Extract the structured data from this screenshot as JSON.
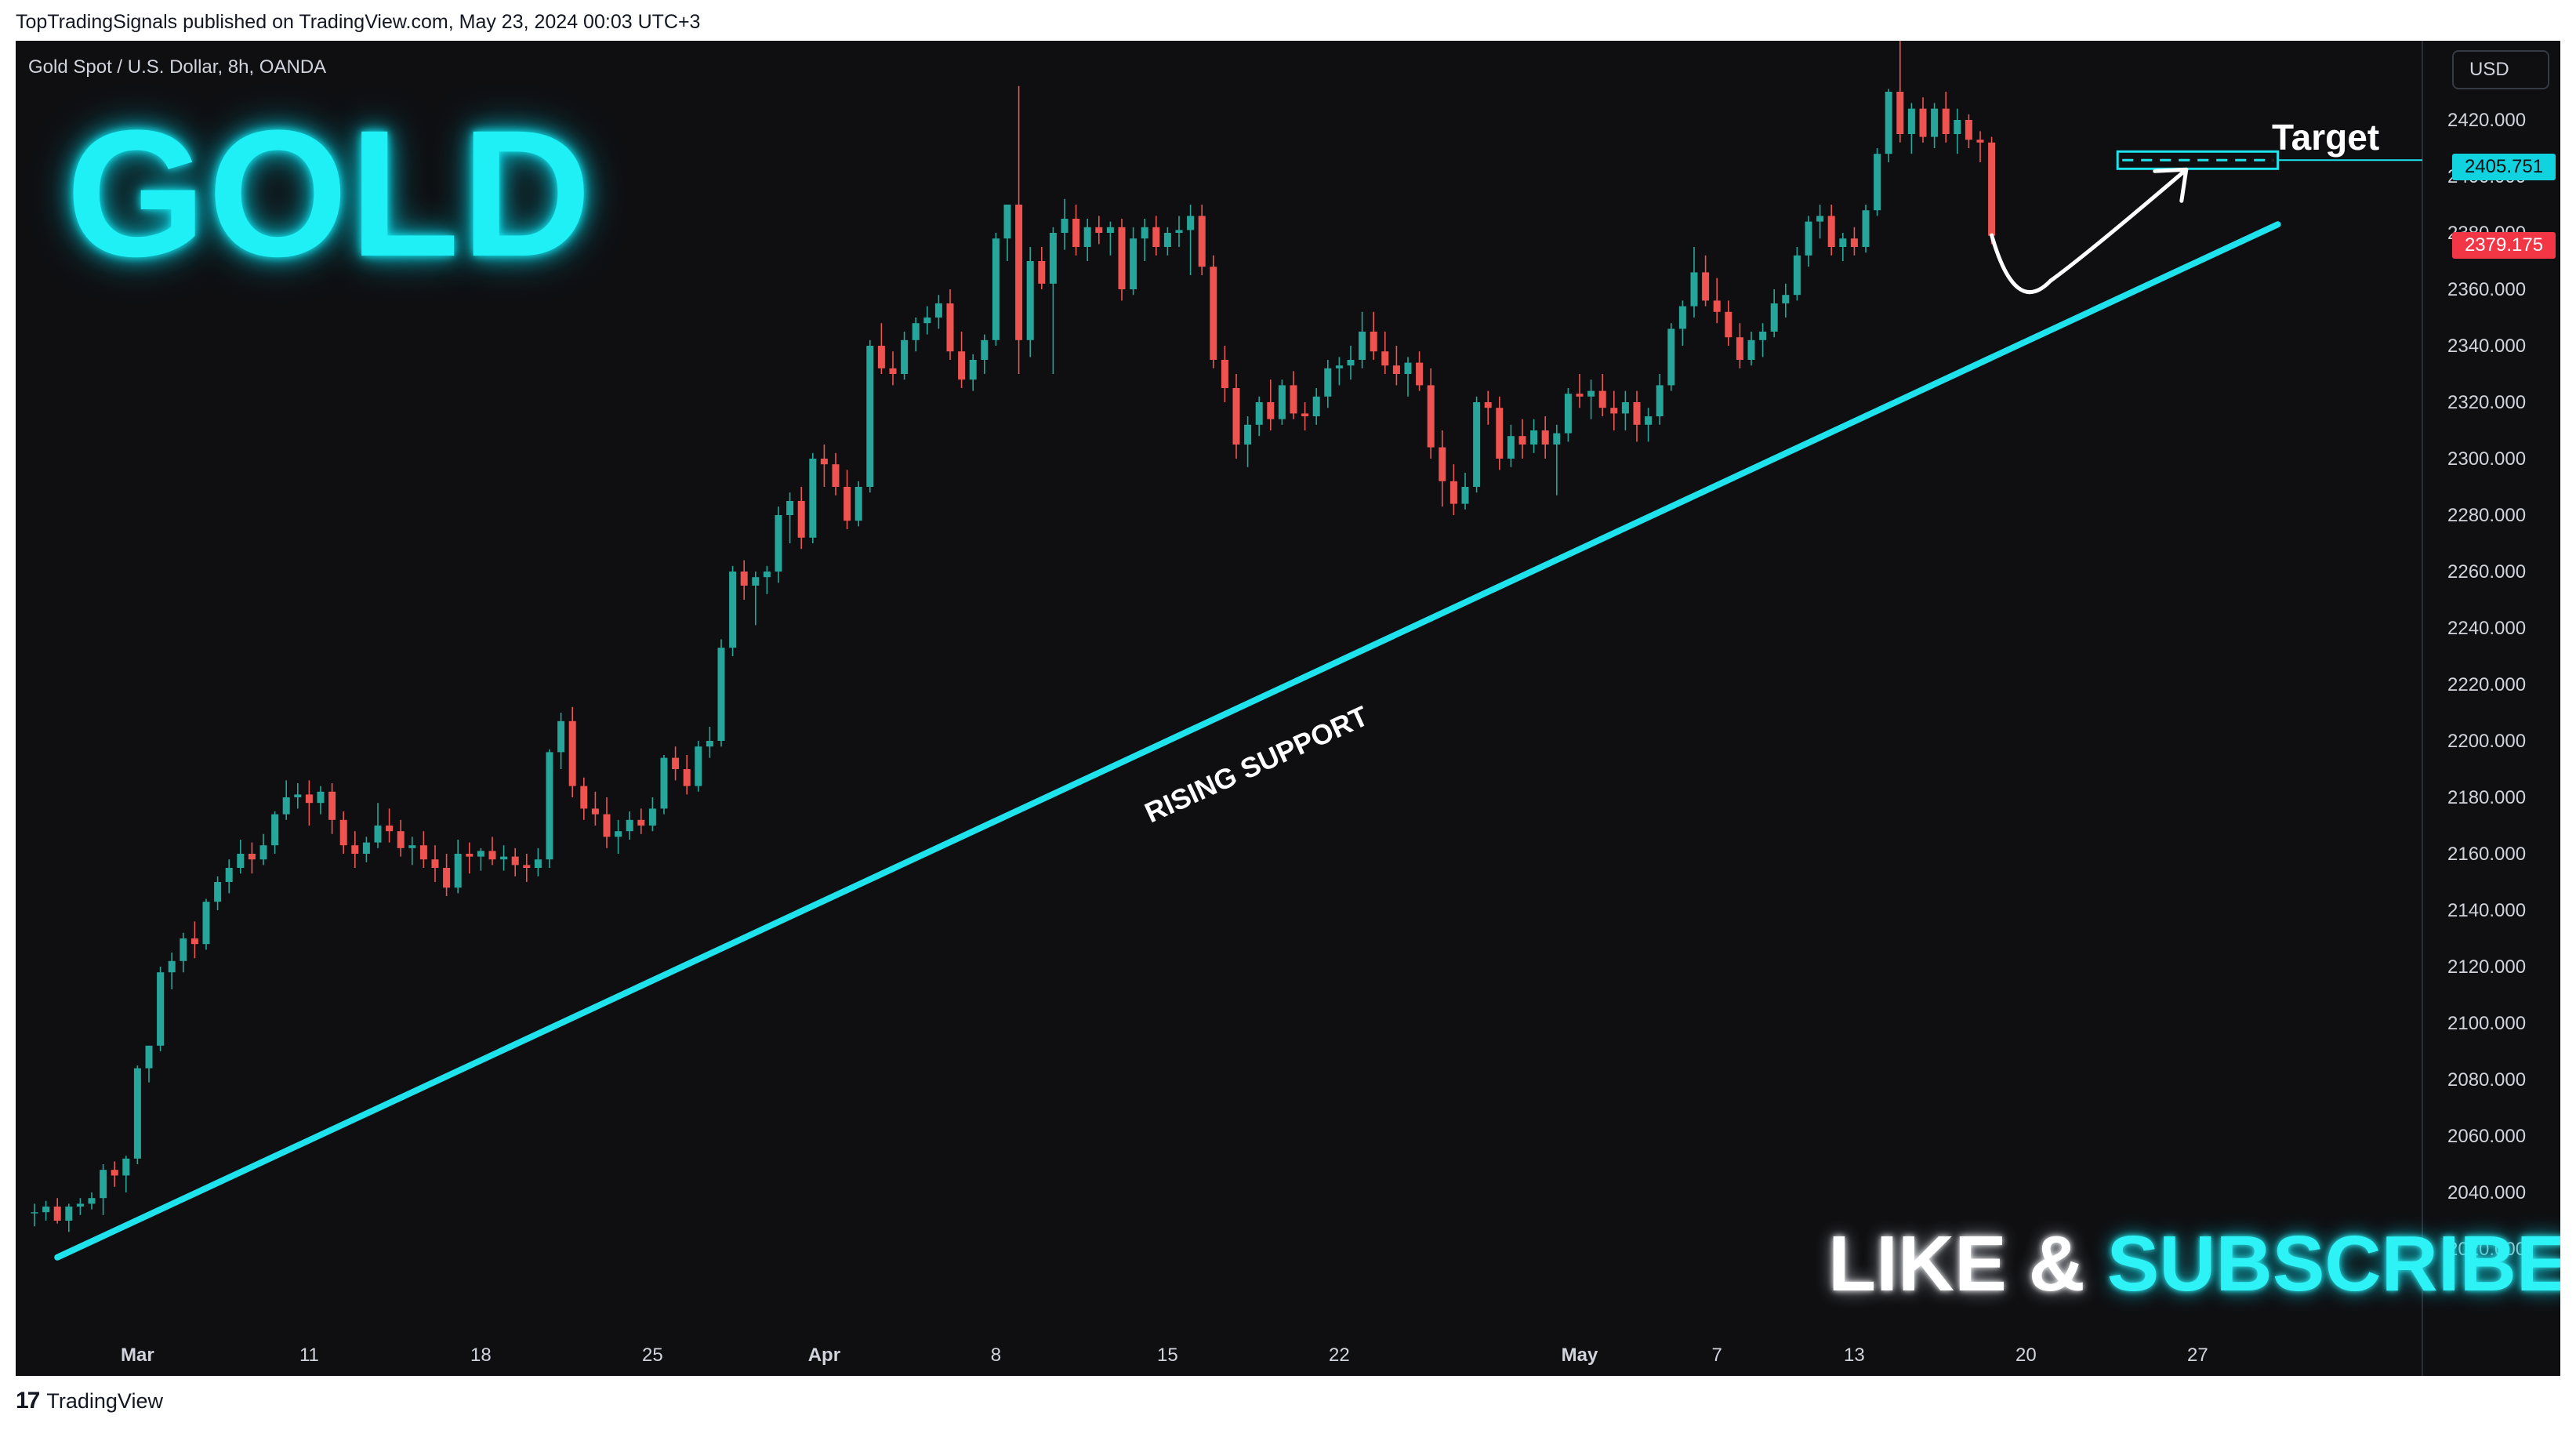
{
  "header": {
    "published_line": "TopTradingSignals published on TradingView.com, May 23, 2024 00:03 UTC+3"
  },
  "chart": {
    "symbol_line": "Gold Spot / U.S. Dollar, 8h, OANDA",
    "currency": "USD",
    "title_overlay": "GOLD",
    "like_text": "LIKE &",
    "subscribe_text": "SUBSCRIBE",
    "target_label": "Target",
    "support_label": "RISING SUPPORT",
    "target_price_tag": "2405.751",
    "last_price_tag": "2379.175"
  },
  "footer": {
    "logo_glyph": "17",
    "brand": "TradingView"
  },
  "colors": {
    "background": "#0f0f12",
    "up": "#26a69a",
    "down": "#ef5350",
    "support_line": "#1fe3ec",
    "target_box": "#1fe3ec",
    "arrow": "#ffffff"
  },
  "chart_data": {
    "type": "candlestick",
    "title": "Gold Spot / U.S. Dollar, 8h, OANDA",
    "ylabel": "USD",
    "ylim": [
      2010,
      2425
    ],
    "y_ticks": [
      2020,
      2040,
      2060,
      2080,
      2100,
      2120,
      2140,
      2160,
      2180,
      2200,
      2220,
      2240,
      2260,
      2280,
      2300,
      2320,
      2340,
      2360,
      2380,
      2400,
      2420
    ],
    "x_ticks": [
      {
        "label": "Mar",
        "bar": 9
      },
      {
        "label": "11",
        "bar": 24
      },
      {
        "label": "18",
        "bar": 39
      },
      {
        "label": "25",
        "bar": 54
      },
      {
        "label": "Apr",
        "bar": 69
      },
      {
        "label": "8",
        "bar": 84
      },
      {
        "label": "15",
        "bar": 99
      },
      {
        "label": "22",
        "bar": 114
      },
      {
        "label": "May",
        "bar": 135
      },
      {
        "label": "7",
        "bar": 147
      },
      {
        "label": "13",
        "bar": 159
      },
      {
        "label": "20",
        "bar": 174
      },
      {
        "label": "27",
        "bar": 189
      }
    ],
    "grid": false,
    "series": [
      {
        "ohlc": [
          [
            2033,
            2036,
            2028,
            2033
          ],
          [
            2033,
            2037,
            2030,
            2035
          ],
          [
            2035,
            2038,
            2029,
            2030
          ],
          [
            2030,
            2036,
            2026,
            2035
          ],
          [
            2035,
            2038,
            2032,
            2036
          ],
          [
            2036,
            2040,
            2034,
            2038
          ],
          [
            2038,
            2050,
            2032,
            2048
          ],
          [
            2048,
            2051,
            2042,
            2046
          ],
          [
            2046,
            2053,
            2040,
            2052
          ],
          [
            2052,
            2085,
            2050,
            2084
          ],
          [
            2084,
            2092,
            2079,
            2092
          ],
          [
            2092,
            2120,
            2090,
            2118
          ],
          [
            2118,
            2125,
            2112,
            2122
          ],
          [
            2122,
            2132,
            2118,
            2130
          ],
          [
            2130,
            2136,
            2123,
            2128
          ],
          [
            2128,
            2144,
            2126,
            2143
          ],
          [
            2143,
            2152,
            2140,
            2150
          ],
          [
            2150,
            2158,
            2146,
            2155
          ],
          [
            2155,
            2165,
            2153,
            2160
          ],
          [
            2160,
            2164,
            2153,
            2158
          ],
          [
            2158,
            2167,
            2156,
            2163
          ],
          [
            2163,
            2175,
            2160,
            2174
          ],
          [
            2174,
            2186,
            2172,
            2180
          ],
          [
            2180,
            2185,
            2176,
            2181
          ],
          [
            2181,
            2186,
            2170,
            2178
          ],
          [
            2178,
            2184,
            2174,
            2182
          ],
          [
            2182,
            2185,
            2167,
            2172
          ],
          [
            2172,
            2175,
            2160,
            2163
          ],
          [
            2163,
            2168,
            2155,
            2160
          ],
          [
            2160,
            2166,
            2157,
            2164
          ],
          [
            2164,
            2178,
            2162,
            2170
          ],
          [
            2170,
            2176,
            2164,
            2168
          ],
          [
            2168,
            2172,
            2159,
            2162
          ],
          [
            2162,
            2166,
            2156,
            2163
          ],
          [
            2163,
            2168,
            2155,
            2158
          ],
          [
            2158,
            2163,
            2150,
            2155
          ],
          [
            2155,
            2160,
            2145,
            2148
          ],
          [
            2148,
            2165,
            2146,
            2160
          ],
          [
            2160,
            2164,
            2153,
            2159
          ],
          [
            2159,
            2162,
            2154,
            2161
          ],
          [
            2161,
            2166,
            2156,
            2158
          ],
          [
            2158,
            2163,
            2154,
            2159
          ],
          [
            2159,
            2162,
            2152,
            2156
          ],
          [
            2156,
            2160,
            2150,
            2155
          ],
          [
            2155,
            2162,
            2152,
            2158
          ],
          [
            2158,
            2197,
            2155,
            2196
          ],
          [
            2196,
            2210,
            2190,
            2207
          ],
          [
            2207,
            2212,
            2180,
            2184
          ],
          [
            2184,
            2187,
            2172,
            2176
          ],
          [
            2176,
            2182,
            2170,
            2174
          ],
          [
            2174,
            2180,
            2162,
            2166
          ],
          [
            2166,
            2172,
            2160,
            2168
          ],
          [
            2168,
            2175,
            2165,
            2172
          ],
          [
            2172,
            2176,
            2167,
            2170
          ],
          [
            2170,
            2180,
            2168,
            2176
          ],
          [
            2176,
            2195,
            2174,
            2194
          ],
          [
            2194,
            2198,
            2186,
            2190
          ],
          [
            2190,
            2195,
            2181,
            2184
          ],
          [
            2184,
            2200,
            2182,
            2198
          ],
          [
            2198,
            2205,
            2194,
            2200
          ],
          [
            2200,
            2236,
            2198,
            2233
          ],
          [
            2233,
            2262,
            2230,
            2260
          ],
          [
            2260,
            2264,
            2250,
            2255
          ],
          [
            2255,
            2260,
            2241,
            2258
          ],
          [
            2258,
            2262,
            2252,
            2260
          ],
          [
            2260,
            2283,
            2256,
            2280
          ],
          [
            2280,
            2288,
            2270,
            2285
          ],
          [
            2285,
            2290,
            2268,
            2272
          ],
          [
            2272,
            2302,
            2270,
            2300
          ],
          [
            2300,
            2305,
            2290,
            2298
          ],
          [
            2298,
            2302,
            2287,
            2290
          ],
          [
            2290,
            2296,
            2275,
            2278
          ],
          [
            2278,
            2292,
            2276,
            2290
          ],
          [
            2290,
            2342,
            2288,
            2340
          ],
          [
            2340,
            2348,
            2330,
            2332
          ],
          [
            2332,
            2338,
            2326,
            2330
          ],
          [
            2330,
            2345,
            2328,
            2342
          ],
          [
            2342,
            2350,
            2338,
            2348
          ],
          [
            2348,
            2354,
            2344,
            2350
          ],
          [
            2350,
            2358,
            2346,
            2355
          ],
          [
            2355,
            2360,
            2335,
            2338
          ],
          [
            2338,
            2345,
            2325,
            2328
          ],
          [
            2328,
            2337,
            2324,
            2335
          ],
          [
            2335,
            2344,
            2330,
            2342
          ],
          [
            2342,
            2380,
            2340,
            2378
          ],
          [
            2378,
            2390,
            2370,
            2390
          ],
          [
            2390,
            2432,
            2330,
            2342
          ],
          [
            2342,
            2375,
            2336,
            2370
          ],
          [
            2370,
            2375,
            2360,
            2362
          ],
          [
            2362,
            2382,
            2330,
            2380
          ],
          [
            2380,
            2392,
            2374,
            2385
          ],
          [
            2385,
            2390,
            2372,
            2375
          ],
          [
            2375,
            2385,
            2370,
            2382
          ],
          [
            2382,
            2386,
            2376,
            2380
          ],
          [
            2380,
            2384,
            2372,
            2382
          ],
          [
            2382,
            2385,
            2356,
            2360
          ],
          [
            2360,
            2382,
            2358,
            2378
          ],
          [
            2378,
            2385,
            2370,
            2382
          ],
          [
            2382,
            2386,
            2372,
            2375
          ],
          [
            2375,
            2382,
            2372,
            2380
          ],
          [
            2380,
            2386,
            2375,
            2381
          ],
          [
            2381,
            2390,
            2365,
            2386
          ],
          [
            2386,
            2390,
            2365,
            2368
          ],
          [
            2368,
            2372,
            2332,
            2335
          ],
          [
            2335,
            2340,
            2320,
            2325
          ],
          [
            2325,
            2330,
            2300,
            2305
          ],
          [
            2305,
            2315,
            2297,
            2312
          ],
          [
            2312,
            2322,
            2308,
            2320
          ],
          [
            2320,
            2328,
            2310,
            2314
          ],
          [
            2314,
            2328,
            2312,
            2326
          ],
          [
            2326,
            2331,
            2314,
            2316
          ],
          [
            2316,
            2320,
            2310,
            2315
          ],
          [
            2315,
            2325,
            2312,
            2322
          ],
          [
            2322,
            2335,
            2318,
            2332
          ],
          [
            2332,
            2336,
            2326,
            2333
          ],
          [
            2333,
            2340,
            2328,
            2335
          ],
          [
            2335,
            2352,
            2332,
            2345
          ],
          [
            2345,
            2352,
            2335,
            2338
          ],
          [
            2338,
            2345,
            2330,
            2333
          ],
          [
            2333,
            2340,
            2326,
            2330
          ],
          [
            2330,
            2336,
            2322,
            2334
          ],
          [
            2334,
            2338,
            2324,
            2326
          ],
          [
            2326,
            2332,
            2300,
            2304
          ],
          [
            2304,
            2310,
            2283,
            2292
          ],
          [
            2292,
            2298,
            2280,
            2284
          ],
          [
            2284,
            2295,
            2282,
            2290
          ],
          [
            2290,
            2322,
            2288,
            2320
          ],
          [
            2320,
            2324,
            2312,
            2318
          ],
          [
            2318,
            2322,
            2296,
            2300
          ],
          [
            2300,
            2312,
            2297,
            2308
          ],
          [
            2308,
            2314,
            2300,
            2305
          ],
          [
            2305,
            2314,
            2302,
            2310
          ],
          [
            2310,
            2315,
            2300,
            2305
          ],
          [
            2305,
            2312,
            2287,
            2309
          ],
          [
            2309,
            2325,
            2306,
            2323
          ],
          [
            2323,
            2330,
            2318,
            2322
          ],
          [
            2322,
            2328,
            2314,
            2324
          ],
          [
            2324,
            2330,
            2315,
            2318
          ],
          [
            2318,
            2324,
            2310,
            2316
          ],
          [
            2316,
            2324,
            2310,
            2320
          ],
          [
            2320,
            2324,
            2306,
            2312
          ],
          [
            2312,
            2318,
            2306,
            2315
          ],
          [
            2315,
            2330,
            2312,
            2326
          ],
          [
            2326,
            2348,
            2324,
            2346
          ],
          [
            2346,
            2356,
            2340,
            2354
          ],
          [
            2354,
            2375,
            2350,
            2366
          ],
          [
            2366,
            2372,
            2354,
            2356
          ],
          [
            2356,
            2364,
            2348,
            2352
          ],
          [
            2352,
            2356,
            2340,
            2343
          ],
          [
            2343,
            2348,
            2332,
            2335
          ],
          [
            2335,
            2345,
            2333,
            2342
          ],
          [
            2342,
            2348,
            2336,
            2345
          ],
          [
            2345,
            2360,
            2343,
            2355
          ],
          [
            2355,
            2362,
            2350,
            2358
          ],
          [
            2358,
            2375,
            2356,
            2372
          ],
          [
            2372,
            2386,
            2368,
            2384
          ],
          [
            2384,
            2390,
            2378,
            2386
          ],
          [
            2386,
            2390,
            2372,
            2375
          ],
          [
            2375,
            2380,
            2370,
            2378
          ],
          [
            2378,
            2382,
            2372,
            2375
          ],
          [
            2375,
            2390,
            2373,
            2388
          ],
          [
            2388,
            2410,
            2386,
            2408
          ],
          [
            2408,
            2431,
            2405,
            2430
          ],
          [
            2430,
            2450,
            2412,
            2415
          ],
          [
            2415,
            2426,
            2408,
            2424
          ],
          [
            2424,
            2428,
            2412,
            2414
          ],
          [
            2414,
            2426,
            2410,
            2424
          ],
          [
            2424,
            2430,
            2412,
            2415
          ],
          [
            2415,
            2424,
            2408,
            2420
          ],
          [
            2420,
            2422,
            2410,
            2413
          ],
          [
            2413,
            2416,
            2405,
            2412
          ],
          [
            2412,
            2414,
            2376,
            2379
          ]
        ]
      }
    ],
    "annotations": {
      "support_line": {
        "from": {
          "bar": 2,
          "price": 2017
        },
        "to": {
          "bar": 196,
          "price": 2383
        },
        "label": "RISING SUPPORT"
      },
      "target": {
        "price": 2405.751,
        "from_bar": 182,
        "to_bar": 196,
        "label": "Target"
      },
      "last_price": 2379.175
    }
  }
}
